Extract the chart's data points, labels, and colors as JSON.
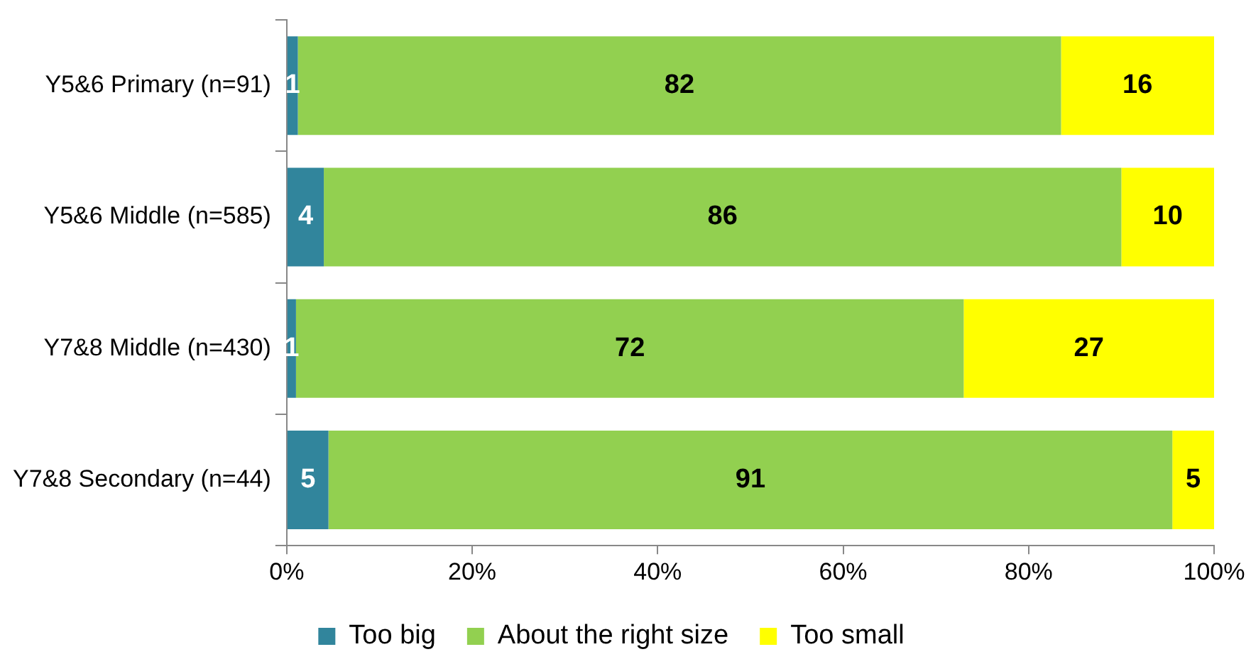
{
  "chart_data": {
    "type": "bar",
    "orientation": "horizontal",
    "stacked": true,
    "categories": [
      "Y5&6 Primary (n=91)",
      "Y5&6 Middle (n=585)",
      "Y7&8 Middle (n=430)",
      "Y7&8 Secondary (n=44)"
    ],
    "series": [
      {
        "name": "Too big",
        "color": "#31859c",
        "values": [
          1.2,
          4,
          1,
          4.5
        ],
        "value_labels": [
          "1",
          "4",
          "1",
          "5"
        ]
      },
      {
        "name": "About the right size",
        "color": "#92d050",
        "values": [
          82.3,
          86,
          72,
          91
        ],
        "value_labels": [
          "82",
          "86",
          "72",
          "91"
        ]
      },
      {
        "name": "Too small",
        "color": "#ffff00",
        "values": [
          16.5,
          10,
          27,
          4.5
        ],
        "value_labels": [
          "16",
          "10",
          "27",
          "5"
        ]
      }
    ],
    "xlim": [
      0,
      100
    ],
    "xticks": [
      {
        "value": 0,
        "label": "0%"
      },
      {
        "value": 20,
        "label": "20%"
      },
      {
        "value": 40,
        "label": "40%"
      },
      {
        "value": 60,
        "label": "60%"
      },
      {
        "value": 80,
        "label": "80%"
      },
      {
        "value": 100,
        "label": "100%"
      }
    ],
    "grid": false,
    "legend": "bottom"
  }
}
